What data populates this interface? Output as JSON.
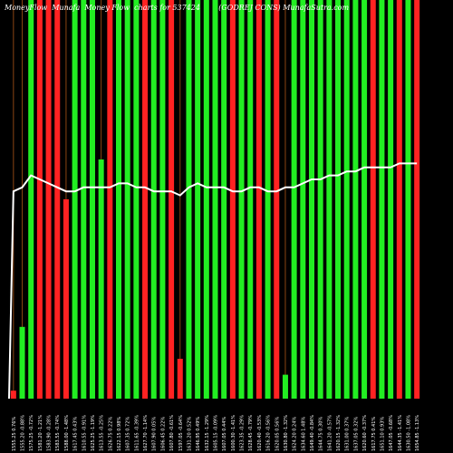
{
  "title": "MoneyFlow  Munafa  Money Flow  charts for 537424",
  "subtitle": "(GODREJ CONS) MunafaSutra.com",
  "chart_data": {
    "type": "bar",
    "title": "MoneyFlow  Munafa  Money Flow  charts for 537424",
    "subtitle": "(GODREJ CONS) MunafaSutra.com",
    "grid": true,
    "grid_color": "#8B4513",
    "colors": {
      "up": "#22EE22",
      "down": "#FF2222",
      "line": "#FFFFFF",
      "background": "#000000"
    },
    "ylim": [
      0,
      100
    ],
    "categories": [
      "1555.25 0.76%",
      "1555.20 -0.88%",
      "1575.25 -0.72%",
      "1581.20 -1.21%",
      "1583.90 -0.28%",
      "1583.55 -0.74%",
      "1588.00 -1.48%",
      "1617.45 0.43%",
      "1610.55 -0.91%",
      "1625.25 -1.19%",
      "1613.55 -0.25%",
      "1626.75 0.22%",
      "1622.15 0.98%",
      "1607.35 0.72%",
      "1611.65 -0.39%",
      "1627.70 -1.14%",
      "1607.90 0.05%",
      "1606.45 0.22%",
      "1607.80 -0.61%",
      "1597.05 -0.64%",
      "1631.20 0.52%",
      "1646.95 0.49%",
      "1632.15 -1.29%",
      "1605.15 -0.09%",
      "1607.05 0.44%",
      "1600.30 -1.41%",
      "1623.35 -0.29%",
      "1628.45 -0.79%",
      "1620.40 -0.53%",
      "1616.20 -0.56%",
      "1620.05 0.56%",
      "1630.80 -1.32%",
      "1624.20 0.24%",
      "1634.60 1.48%",
      "1649.40 -0.84%",
      "1644.75 0.30%",
      "1641.20 -0.57%",
      "1620.15 -1.32%",
      "1631.00 0.37%",
      "1637.05 0.32%",
      "1620.60 -0.37%",
      "1617.75 0.41%",
      "1651.10 0.93%",
      "1647.05 -0.68%",
      "1644.35 -1.41%",
      "1630.50 -1.08%",
      "1654.85 -1.13%"
    ],
    "values": [
      2,
      18,
      100,
      100,
      100,
      100,
      50,
      100,
      100,
      100,
      60,
      100,
      100,
      100,
      100,
      100,
      100,
      100,
      100,
      10,
      100,
      100,
      100,
      100,
      100,
      100,
      100,
      100,
      100,
      100,
      100,
      6,
      100,
      100,
      100,
      100,
      100,
      100,
      100,
      100,
      100,
      100,
      100,
      100,
      100,
      100,
      100
    ],
    "directions": [
      "down",
      "up",
      "up",
      "down",
      "down",
      "down",
      "down",
      "up",
      "up",
      "up",
      "up",
      "down",
      "up",
      "up",
      "up",
      "down",
      "up",
      "up",
      "down",
      "down",
      "up",
      "up",
      "up",
      "up",
      "up",
      "down",
      "up",
      "up",
      "down",
      "up",
      "down",
      "up",
      "up",
      "up",
      "up",
      "up",
      "up",
      "up",
      "up",
      "up",
      "up",
      "down",
      "up",
      "up",
      "down",
      "up",
      "down"
    ],
    "line": [
      52,
      53,
      56,
      55,
      54,
      53,
      52,
      52,
      53,
      53,
      53,
      53,
      54,
      54,
      53,
      53,
      52,
      52,
      52,
      51,
      53,
      54,
      53,
      53,
      53,
      52,
      52,
      53,
      53,
      52,
      52,
      53,
      53,
      54,
      55,
      55,
      56,
      56,
      57,
      57,
      58,
      58,
      58,
      58,
      59,
      59,
      59
    ]
  }
}
